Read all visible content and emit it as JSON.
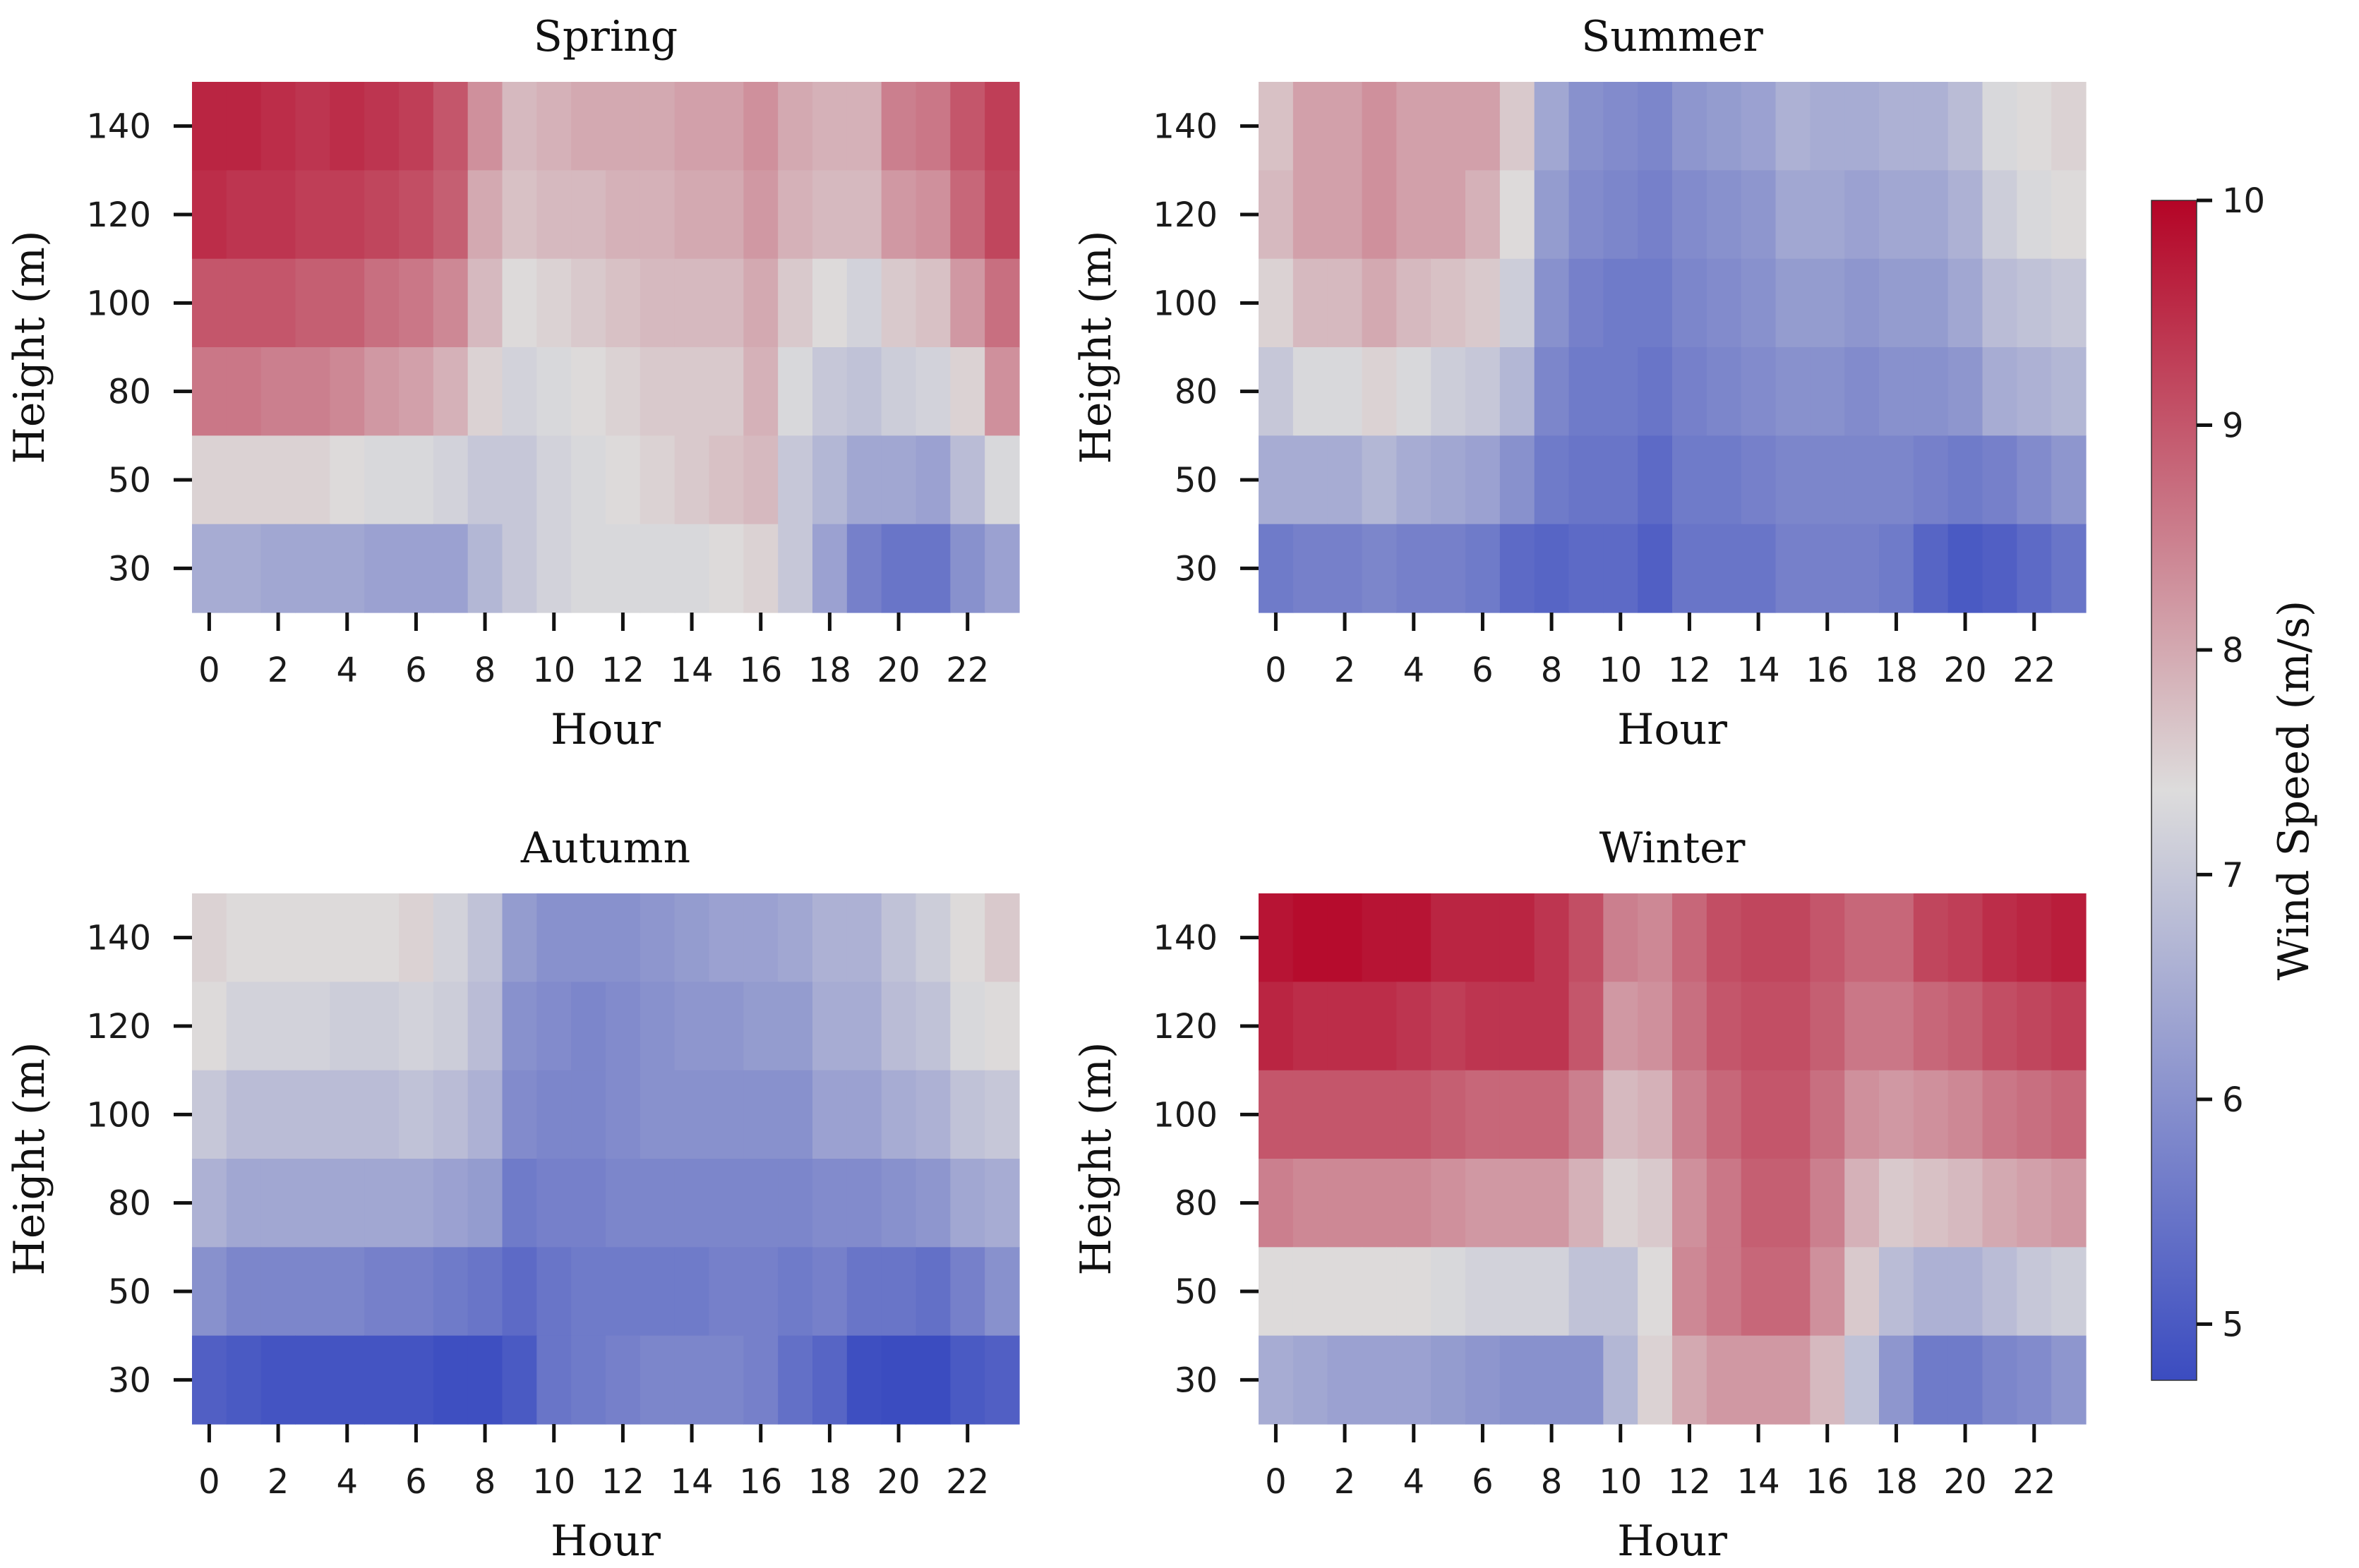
{
  "chart_data": {
    "type": "heatmap",
    "hours": [
      0,
      1,
      2,
      3,
      4,
      5,
      6,
      7,
      8,
      9,
      10,
      11,
      12,
      13,
      14,
      15,
      16,
      17,
      18,
      19,
      20,
      21,
      22,
      23
    ],
    "hour_ticks": [
      "0",
      "2",
      "4",
      "6",
      "8",
      "10",
      "12",
      "14",
      "16",
      "18",
      "20",
      "22"
    ],
    "heights": [
      "140",
      "120",
      "100",
      "80",
      "50",
      "30"
    ],
    "xlabel": "Hour",
    "ylabel": "Height (m)",
    "colorbar": {
      "label": "Wind Speed (m/s)",
      "min": 4.75,
      "max": 10.0,
      "ticks": [
        "5",
        "6",
        "7",
        "8",
        "9",
        "10"
      ],
      "colors": [
        "#3b4cc0",
        "#dddcdc",
        "#b40426"
      ]
    },
    "panels": [
      {
        "title": "Spring",
        "values": [
          [
            9.6,
            9.6,
            9.5,
            9.4,
            9.5,
            9.4,
            9.3,
            9.0,
            8.3,
            7.8,
            7.9,
            8.0,
            8.0,
            8.0,
            8.1,
            8.1,
            8.3,
            8.0,
            7.9,
            7.9,
            8.5,
            8.6,
            9.0,
            9.3
          ],
          [
            9.5,
            9.4,
            9.4,
            9.3,
            9.3,
            9.2,
            9.1,
            8.9,
            8.0,
            7.7,
            7.8,
            7.8,
            7.9,
            7.9,
            8.0,
            8.0,
            8.2,
            7.9,
            7.8,
            7.8,
            8.2,
            8.3,
            8.8,
            9.2
          ],
          [
            9.0,
            9.0,
            9.0,
            8.9,
            8.9,
            8.7,
            8.6,
            8.4,
            7.8,
            7.4,
            7.5,
            7.6,
            7.7,
            7.8,
            7.8,
            7.8,
            8.0,
            7.6,
            7.4,
            7.2,
            7.6,
            7.7,
            8.2,
            8.7
          ],
          [
            8.6,
            8.6,
            8.5,
            8.5,
            8.4,
            8.2,
            8.1,
            7.9,
            7.5,
            7.2,
            7.3,
            7.4,
            7.5,
            7.6,
            7.6,
            7.6,
            7.9,
            7.3,
            7.0,
            6.9,
            7.1,
            7.2,
            7.5,
            8.3
          ],
          [
            7.5,
            7.5,
            7.5,
            7.5,
            7.4,
            7.3,
            7.3,
            7.2,
            7.0,
            7.0,
            7.2,
            7.3,
            7.4,
            7.5,
            7.6,
            7.7,
            7.8,
            7.0,
            6.7,
            6.4,
            6.4,
            6.3,
            6.8,
            7.3
          ],
          [
            6.5,
            6.5,
            6.4,
            6.4,
            6.4,
            6.3,
            6.3,
            6.3,
            6.7,
            7.0,
            7.2,
            7.3,
            7.3,
            7.3,
            7.3,
            7.4,
            7.5,
            7.0,
            6.3,
            5.7,
            5.5,
            5.5,
            6.0,
            6.3
          ]
        ]
      },
      {
        "title": "Summer",
        "values": [
          [
            7.7,
            8.1,
            8.1,
            8.3,
            8.1,
            8.1,
            8.1,
            7.6,
            6.4,
            6.0,
            5.9,
            5.8,
            6.1,
            6.2,
            6.3,
            6.6,
            6.5,
            6.5,
            6.6,
            6.6,
            6.8,
            7.3,
            7.4,
            7.5
          ],
          [
            7.8,
            8.1,
            8.1,
            8.3,
            8.1,
            8.1,
            7.9,
            7.4,
            6.2,
            5.9,
            5.8,
            5.7,
            5.9,
            6.0,
            6.1,
            6.4,
            6.4,
            6.3,
            6.4,
            6.4,
            6.6,
            7.1,
            7.3,
            7.4
          ],
          [
            7.5,
            7.8,
            7.8,
            8.0,
            7.8,
            7.7,
            7.6,
            7.1,
            6.0,
            5.7,
            5.6,
            5.6,
            5.8,
            5.9,
            6.0,
            6.2,
            6.2,
            6.1,
            6.2,
            6.2,
            6.4,
            6.8,
            6.9,
            7.0
          ],
          [
            7.0,
            7.3,
            7.3,
            7.5,
            7.3,
            7.1,
            7.0,
            6.7,
            5.8,
            5.6,
            5.6,
            5.5,
            5.7,
            5.8,
            5.9,
            6.0,
            6.0,
            5.9,
            6.0,
            6.0,
            6.1,
            6.5,
            6.6,
            6.7
          ],
          [
            6.5,
            6.5,
            6.5,
            6.7,
            6.5,
            6.4,
            6.3,
            6.0,
            5.6,
            5.5,
            5.5,
            5.3,
            5.6,
            5.6,
            5.7,
            5.8,
            5.8,
            5.8,
            5.8,
            5.7,
            5.6,
            5.7,
            5.9,
            6.1
          ],
          [
            5.6,
            5.7,
            5.7,
            5.8,
            5.7,
            5.7,
            5.6,
            5.3,
            5.2,
            5.3,
            5.3,
            5.1,
            5.5,
            5.5,
            5.5,
            5.7,
            5.7,
            5.7,
            5.6,
            5.2,
            5.0,
            5.1,
            5.3,
            5.5
          ]
        ]
      },
      {
        "title": "Autumn",
        "values": [
          [
            7.5,
            7.4,
            7.4,
            7.4,
            7.4,
            7.4,
            7.5,
            7.2,
            6.9,
            6.2,
            6.0,
            6.0,
            6.0,
            6.1,
            6.2,
            6.3,
            6.3,
            6.4,
            6.6,
            6.6,
            6.9,
            7.1,
            7.4,
            7.6
          ],
          [
            7.4,
            7.2,
            7.2,
            7.2,
            7.1,
            7.1,
            7.2,
            7.1,
            6.8,
            6.0,
            5.9,
            5.8,
            5.9,
            6.0,
            6.1,
            6.1,
            6.2,
            6.2,
            6.5,
            6.5,
            6.8,
            6.9,
            7.3,
            7.4
          ],
          [
            7.0,
            6.8,
            6.8,
            6.8,
            6.8,
            6.8,
            6.9,
            6.8,
            6.6,
            5.9,
            5.8,
            5.8,
            5.9,
            6.0,
            6.0,
            6.0,
            6.0,
            6.0,
            6.3,
            6.3,
            6.5,
            6.6,
            6.9,
            7.0
          ],
          [
            6.6,
            6.4,
            6.4,
            6.4,
            6.4,
            6.4,
            6.4,
            6.3,
            6.2,
            5.6,
            5.7,
            5.7,
            5.8,
            5.8,
            5.8,
            5.8,
            5.8,
            5.8,
            5.9,
            5.9,
            6.0,
            6.1,
            6.4,
            6.5
          ],
          [
            6.0,
            5.8,
            5.8,
            5.8,
            5.8,
            5.7,
            5.7,
            5.6,
            5.5,
            5.3,
            5.5,
            5.6,
            5.6,
            5.6,
            5.6,
            5.7,
            5.7,
            5.6,
            5.7,
            5.5,
            5.5,
            5.4,
            5.7,
            6.0
          ],
          [
            5.1,
            5.0,
            4.9,
            4.9,
            4.9,
            4.9,
            4.9,
            4.8,
            4.8,
            5.0,
            5.5,
            5.6,
            5.7,
            5.8,
            5.8,
            5.8,
            5.7,
            5.4,
            5.2,
            4.8,
            4.7,
            4.7,
            5.0,
            5.1
          ]
        ]
      },
      {
        "title": "Winter",
        "values": [
          [
            9.8,
            9.9,
            9.9,
            9.8,
            9.8,
            9.6,
            9.6,
            9.6,
            9.4,
            9.1,
            8.5,
            8.4,
            8.8,
            9.1,
            9.2,
            9.2,
            9.0,
            8.8,
            8.8,
            9.2,
            9.3,
            9.5,
            9.6,
            9.7
          ],
          [
            9.6,
            9.5,
            9.5,
            9.5,
            9.4,
            9.3,
            9.4,
            9.4,
            9.4,
            9.0,
            8.2,
            8.3,
            8.7,
            9.0,
            9.1,
            9.1,
            8.9,
            8.6,
            8.6,
            8.8,
            8.9,
            9.1,
            9.2,
            9.3
          ],
          [
            9.0,
            9.0,
            9.0,
            9.0,
            9.0,
            8.9,
            8.8,
            8.8,
            8.8,
            8.5,
            7.8,
            7.9,
            8.5,
            8.8,
            9.0,
            9.0,
            8.7,
            8.3,
            8.2,
            8.3,
            8.4,
            8.6,
            8.7,
            8.8
          ],
          [
            8.5,
            8.4,
            8.4,
            8.4,
            8.4,
            8.3,
            8.2,
            8.2,
            8.2,
            7.9,
            7.5,
            7.6,
            8.3,
            8.6,
            8.9,
            8.9,
            8.5,
            7.9,
            7.6,
            7.7,
            7.8,
            8.0,
            8.1,
            8.2
          ],
          [
            7.4,
            7.4,
            7.4,
            7.4,
            7.4,
            7.3,
            7.2,
            7.2,
            7.2,
            6.9,
            6.9,
            7.4,
            8.4,
            8.6,
            8.8,
            8.8,
            8.3,
            7.6,
            6.8,
            6.6,
            6.6,
            6.8,
            7.0,
            7.1
          ],
          [
            6.5,
            6.4,
            6.3,
            6.3,
            6.3,
            6.2,
            6.1,
            6.0,
            6.0,
            6.0,
            6.7,
            7.5,
            8.0,
            8.2,
            8.2,
            8.2,
            7.8,
            6.9,
            6.1,
            5.6,
            5.6,
            5.8,
            5.9,
            6.1
          ]
        ]
      }
    ]
  }
}
